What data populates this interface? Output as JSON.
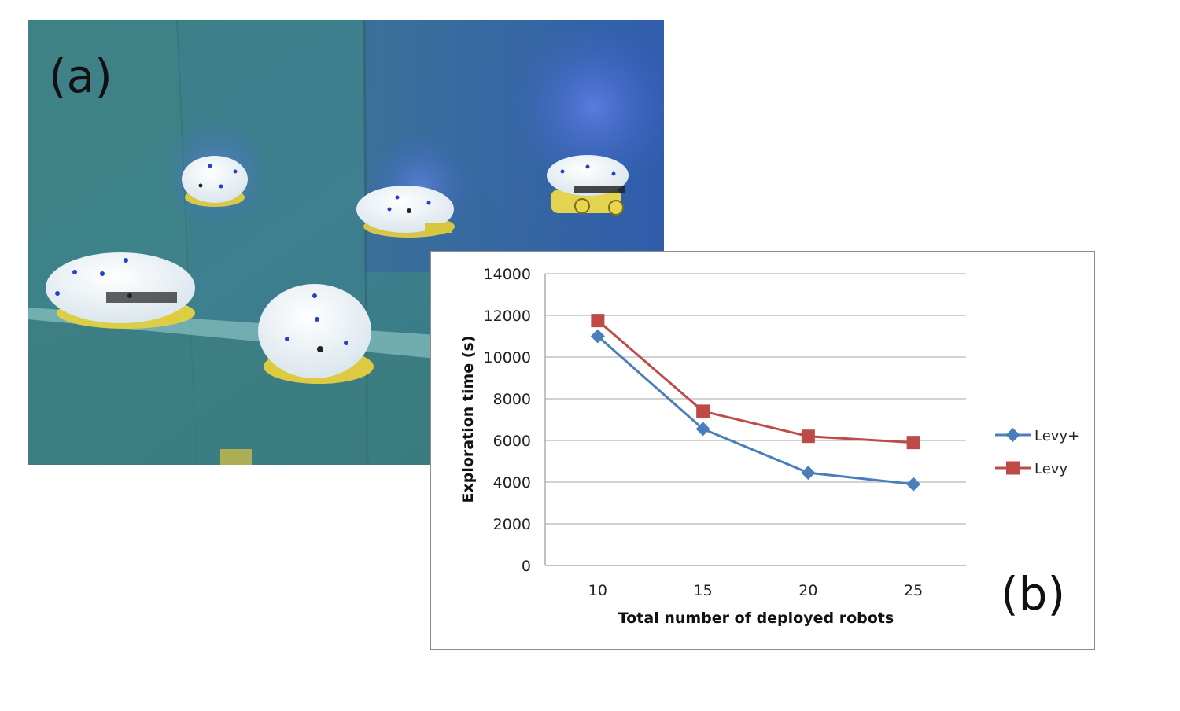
{
  "panels": {
    "photo_label": "(a)",
    "chart_label": "(b)"
  },
  "colors": {
    "levy_plus": "#4a7ebb",
    "levy": "#be4b48",
    "grid": "#a6a6a6",
    "axis": "#868686"
  },
  "chart_data": {
    "type": "line",
    "categories": [
      "10",
      "15",
      "20",
      "25"
    ],
    "series": [
      {
        "name": "Levy+",
        "values": [
          11000,
          6550,
          4450,
          3900
        ],
        "marker": "diamond",
        "color": "#4a7ebb"
      },
      {
        "name": "Levy",
        "values": [
          11750,
          7400,
          6200,
          5900
        ],
        "marker": "square",
        "color": "#be4b48"
      }
    ],
    "ylim": [
      0,
      14000
    ],
    "yticks": [
      "0",
      "2000",
      "4000",
      "6000",
      "8000",
      "10000",
      "12000",
      "14000"
    ],
    "xlabel": "Total number of deployed robots",
    "ylabel": "Exploration time (s)",
    "grid": true,
    "legend_position": "right"
  }
}
